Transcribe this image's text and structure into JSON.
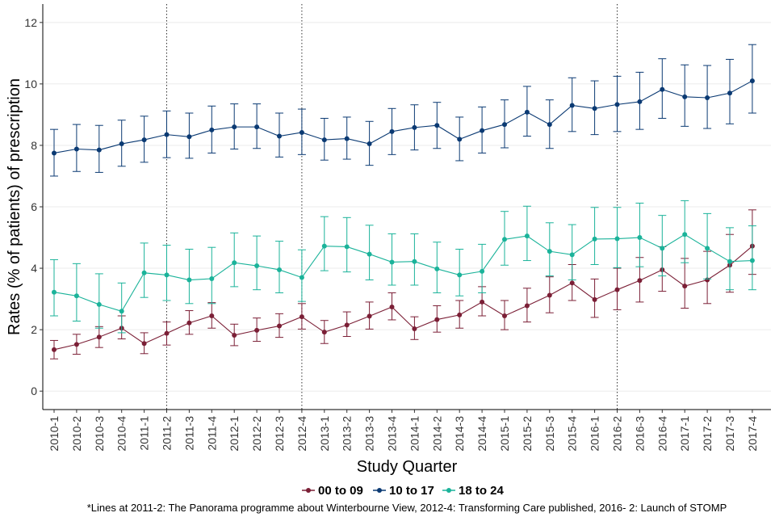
{
  "chart_data": {
    "type": "line",
    "xlabel": "Study Quarter",
    "ylabel": "Rates (% of patients) of prescription",
    "ylim": [
      -0.6,
      12.6
    ],
    "yticks": [
      0,
      2,
      4,
      6,
      8,
      10,
      12
    ],
    "grid": "horizontal",
    "legend_position": "bottom",
    "categories": [
      "2010-1",
      "2010-2",
      "2010-3",
      "2010-4",
      "2011-1",
      "2011-2",
      "2011-3",
      "2011-4",
      "2012-1",
      "2012-2",
      "2012-3",
      "2012-4",
      "2013-1",
      "2013-2",
      "2013-3",
      "2013-4",
      "2014-1",
      "2014-2",
      "2014-3",
      "2014-4",
      "2015-1",
      "2015-2",
      "2015-3",
      "2015-4",
      "2016-1",
      "2016-2",
      "2016-3",
      "2016-4",
      "2017-1",
      "2017-2",
      "2017-3",
      "2017-4"
    ],
    "vlines": [
      "2011-2",
      "2012-4",
      "2016-2"
    ],
    "series": [
      {
        "name": "00 to 09",
        "color": "#7b1f36",
        "values": [
          1.35,
          1.52,
          1.76,
          2.05,
          1.55,
          1.88,
          2.22,
          2.45,
          1.82,
          1.98,
          2.12,
          2.42,
          1.92,
          2.15,
          2.44,
          2.74,
          2.03,
          2.33,
          2.48,
          2.9,
          2.45,
          2.78,
          3.12,
          3.52,
          2.98,
          3.3,
          3.6,
          3.95,
          3.42,
          3.62,
          4.1,
          4.72
        ],
        "lower": [
          1.05,
          1.2,
          1.42,
          1.7,
          1.22,
          1.5,
          1.85,
          2.05,
          1.48,
          1.62,
          1.75,
          2.02,
          1.55,
          1.78,
          2.02,
          2.32,
          1.68,
          1.92,
          2.05,
          2.45,
          2.0,
          2.25,
          2.55,
          2.95,
          2.4,
          2.65,
          2.9,
          3.25,
          2.7,
          2.85,
          3.22,
          3.8
        ],
        "upper": [
          1.65,
          1.85,
          2.1,
          2.45,
          1.9,
          2.25,
          2.62,
          2.88,
          2.18,
          2.38,
          2.52,
          2.85,
          2.3,
          2.58,
          2.9,
          3.2,
          2.42,
          2.78,
          2.95,
          3.4,
          2.95,
          3.35,
          3.72,
          4.12,
          3.65,
          4.0,
          4.35,
          4.7,
          4.32,
          4.55,
          5.1,
          5.9
        ]
      },
      {
        "name": "10 to 17",
        "color": "#0b3a73",
        "values": [
          7.75,
          7.88,
          7.85,
          8.05,
          8.18,
          8.35,
          8.28,
          8.5,
          8.6,
          8.6,
          8.3,
          8.42,
          8.18,
          8.22,
          8.05,
          8.45,
          8.58,
          8.65,
          8.2,
          8.48,
          8.68,
          9.08,
          8.68,
          9.3,
          9.2,
          9.33,
          9.42,
          9.82,
          9.58,
          9.55,
          9.7,
          10.1
        ],
        "lower": [
          7.0,
          7.15,
          7.12,
          7.32,
          7.45,
          7.6,
          7.58,
          7.75,
          7.88,
          7.9,
          7.62,
          7.7,
          7.52,
          7.55,
          7.35,
          7.7,
          7.85,
          7.9,
          7.5,
          7.75,
          7.92,
          8.3,
          7.9,
          8.45,
          8.35,
          8.45,
          8.52,
          8.88,
          8.62,
          8.55,
          8.7,
          9.05
        ],
        "upper": [
          8.52,
          8.68,
          8.65,
          8.82,
          8.95,
          9.12,
          9.05,
          9.28,
          9.35,
          9.35,
          9.05,
          9.18,
          8.88,
          8.92,
          8.78,
          9.2,
          9.32,
          9.4,
          8.92,
          9.25,
          9.48,
          9.92,
          9.48,
          10.2,
          10.1,
          10.25,
          10.38,
          10.82,
          10.62,
          10.6,
          10.8,
          11.28
        ]
      },
      {
        "name": "18 to 24",
        "color": "#1bb39a",
        "values": [
          3.22,
          3.1,
          2.82,
          2.6,
          3.85,
          3.78,
          3.62,
          3.66,
          4.18,
          4.08,
          3.95,
          3.7,
          4.72,
          4.7,
          4.46,
          4.2,
          4.22,
          3.98,
          3.78,
          3.9,
          4.94,
          5.05,
          4.55,
          4.44,
          4.95,
          4.96,
          5.0,
          4.65,
          5.1,
          4.65,
          4.22,
          4.25
        ],
        "lower": [
          2.45,
          2.28,
          2.05,
          1.9,
          3.05,
          2.95,
          2.85,
          2.85,
          3.4,
          3.3,
          3.2,
          2.92,
          3.92,
          3.88,
          3.62,
          3.45,
          3.45,
          3.2,
          3.1,
          3.2,
          4.1,
          4.25,
          3.75,
          3.62,
          4.12,
          4.02,
          4.05,
          3.75,
          4.18,
          3.65,
          3.3,
          3.3
        ],
        "upper": [
          4.28,
          4.15,
          3.82,
          3.52,
          4.82,
          4.75,
          4.62,
          4.68,
          5.15,
          5.05,
          4.88,
          4.6,
          5.68,
          5.65,
          5.4,
          5.12,
          5.12,
          4.85,
          4.62,
          4.78,
          5.85,
          6.02,
          5.48,
          5.42,
          5.98,
          5.98,
          6.12,
          5.72,
          6.2,
          5.78,
          5.32,
          5.38
        ]
      }
    ]
  },
  "footnote": "*Lines at 2011-2: The Panorama programme about Winterbourne View, 2012-4: Transforming Care published, 2016- 2: Launch of STOMP"
}
